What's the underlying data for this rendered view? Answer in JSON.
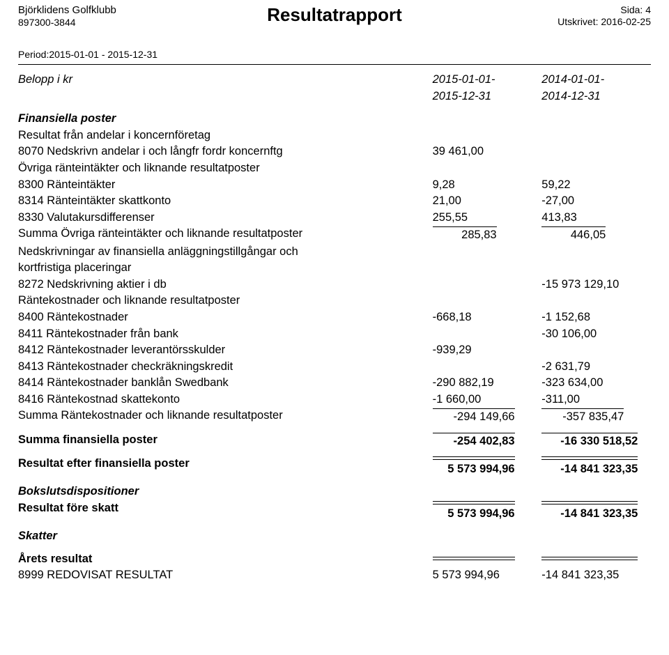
{
  "header": {
    "company": "Björklidens Golfklubb",
    "orgnr": "897300-3844",
    "title": "Resultatrapport",
    "page_label": "Sida: 4",
    "printed_label": "Utskrivet: 2016-02-25",
    "period": "Period:2015-01-01 - 2015-12-31"
  },
  "columns": {
    "label": "Belopp i kr",
    "col2_top": "2015-01-01-",
    "col2_bot": "2015-12-31",
    "col3_top": "2014-01-01-",
    "col3_bot": "2014-12-31"
  },
  "section_fin": "Finansiella poster",
  "rows": {
    "r1": {
      "t": "Resultat från andelar i koncernföretag"
    },
    "r2": {
      "t": "8070 Nedskrivn andelar i och långfr fordr koncernftg",
      "a": "39 461,00"
    },
    "r3": {
      "t": "Övriga ränteintäkter och liknande resultatposter"
    },
    "r4": {
      "t": "8300 Ränteintäkter",
      "a": "9,28",
      "b": "59,22"
    },
    "r5": {
      "t": "8314 Ränteintäkter skattkonto",
      "a": "21,00",
      "b": "-27,00"
    },
    "r6": {
      "t": "8330 Valutakursdifferenser",
      "a": "255,55",
      "b": "413,83"
    },
    "r7": {
      "t": "Summa Övriga ränteintäkter och liknande resultatposter",
      "a": "285,83",
      "b": "446,05"
    },
    "r8a": {
      "t": "Nedskrivningar av finansiella anläggningstillgångar och"
    },
    "r8b": {
      "t": "kortfristiga placeringar"
    },
    "r9": {
      "t": "8272 Nedskrivning aktier i db",
      "b": "-15 973 129,10"
    },
    "r10": {
      "t": "Räntekostnader och liknande resultatposter"
    },
    "r11": {
      "t": "8400 Räntekostnader",
      "a": "-668,18",
      "b": "-1 152,68"
    },
    "r12": {
      "t": "8411 Räntekostnader från bank",
      "b": "-30 106,00"
    },
    "r13": {
      "t": "8412 Räntekostnader leverantörsskulder",
      "a": "-939,29"
    },
    "r14": {
      "t": "8413 Räntekostnader checkräkningskredit",
      "b": "-2 631,79"
    },
    "r15": {
      "t": "8414 Räntekostnader banklån Swedbank",
      "a": "-290 882,19",
      "b": "-323 634,00"
    },
    "r16": {
      "t": "8416 Räntekostnad skattekonto",
      "a": "-1 660,00",
      "b": "-311,00"
    },
    "r17": {
      "t": "Summa Räntekostnader och liknande resultatposter",
      "a": "-294 149,66",
      "b": "-357 835,47"
    },
    "r18": {
      "t": "Summa finansiella poster",
      "a": "-254 402,83",
      "b": "-16 330 518,52"
    },
    "r19": {
      "t": "Resultat efter finansiella poster",
      "a": "5 573 994,96",
      "b": "-14 841 323,35"
    },
    "r20": {
      "t": "Bokslutsdispositioner"
    },
    "r21": {
      "t": "Resultat före skatt",
      "a": "5 573 994,96",
      "b": "-14 841 323,35"
    },
    "r22": {
      "t": "Skatter"
    },
    "r23": {
      "t": "Årets resultat"
    },
    "r24": {
      "t": "8999 REDOVISAT RESULTAT",
      "a": "5 573 994,96",
      "b": "-14 841 323,35"
    }
  },
  "style": {
    "underline_widths": {
      "short": "92px",
      "mid": "118px",
      "wide": "138px"
    }
  }
}
